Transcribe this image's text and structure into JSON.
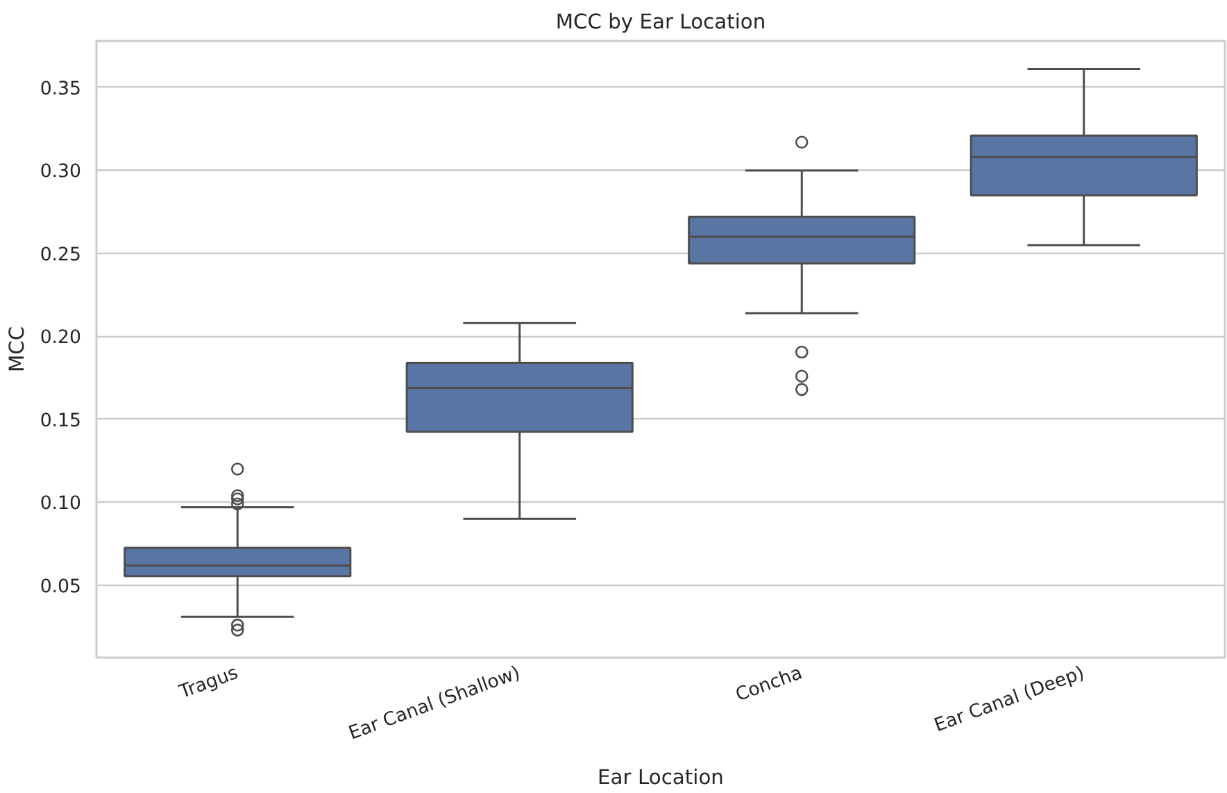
{
  "chart_data": {
    "type": "box",
    "title": "MCC by Ear Location",
    "xlabel": "Ear Location",
    "ylabel": "MCC",
    "categories": [
      "Tragus",
      "Ear Canal (Shallow)",
      "Concha",
      "Ear Canal (Deep)"
    ],
    "series": [
      {
        "color": "#5875a4",
        "boxes": [
          {
            "low": 0.031,
            "q1": 0.0555,
            "median": 0.062,
            "q3": 0.0725,
            "high": 0.097,
            "outliers": [
              0.12,
              0.104,
              0.102,
              0.099,
              0.026,
              0.023
            ]
          },
          {
            "low": 0.09,
            "q1": 0.1425,
            "median": 0.169,
            "q3": 0.184,
            "high": 0.208
          },
          {
            "low": 0.214,
            "q1": 0.244,
            "median": 0.26,
            "q3": 0.272,
            "high": 0.3,
            "outliers": [
              0.317,
              0.1905,
              0.176,
              0.168
            ]
          },
          {
            "low": 0.255,
            "q1": 0.285,
            "median": 0.308,
            "q3": 0.321,
            "high": 0.361
          }
        ]
      }
    ],
    "ylim": [
      0.0064,
      0.378
    ],
    "yticks": [
      {
        "value": 0.05,
        "label": "0.05"
      },
      {
        "value": 0.1,
        "label": "0.10"
      },
      {
        "value": 0.15,
        "label": "0.15"
      },
      {
        "value": 0.2,
        "label": "0.20"
      },
      {
        "value": 0.25,
        "label": "0.25"
      },
      {
        "value": 0.3,
        "label": "0.30"
      },
      {
        "value": 0.35,
        "label": "0.35"
      }
    ],
    "grid": "y"
  }
}
